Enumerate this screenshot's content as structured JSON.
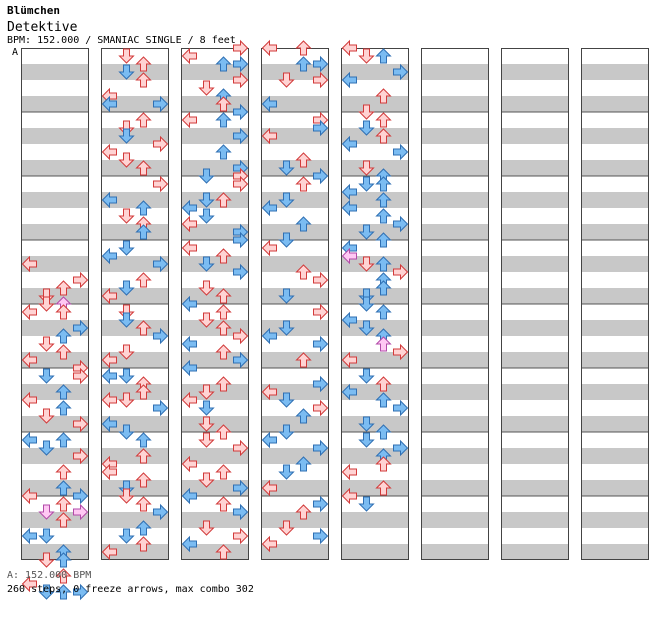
{
  "header": {
    "title": "Blümchen",
    "artist": "Detektive",
    "info": "BPM: 152.000 / SMANIAC SINGLE / 8 feet"
  },
  "section_label": "A",
  "footer": {
    "bpm": "A: 152.000 BPM",
    "stats": "260 steps, 0 freeze arrows, max combo 302"
  },
  "colors": {
    "red_fill": "#ffd3d3",
    "red_stroke": "#d23a3a",
    "blue_fill": "#7bbcf2",
    "blue_stroke": "#2f6fb3",
    "pink_fill": "#ffc8f3",
    "pink_stroke": "#b24aa8",
    "stripe": "#c8c8c8"
  },
  "chart_data": {
    "type": "step-chart",
    "bpm": 152.0,
    "difficulty": "SMANIAC",
    "mode": "SINGLE",
    "feet": 8,
    "steps": 260,
    "freeze_arrows": 0,
    "max_combo": 302,
    "columns": 8,
    "measures_per_column": 8,
    "rows_per_measure": 8,
    "lanes": [
      "left",
      "down",
      "up",
      "right"
    ],
    "notes": [
      [
        0,
        27,
        0,
        "r"
      ],
      [
        0,
        29,
        3,
        "r"
      ],
      [
        0,
        30,
        2,
        "r"
      ],
      [
        0,
        31,
        1,
        "r"
      ],
      [
        0,
        32,
        1,
        "r"
      ],
      [
        0,
        32,
        2,
        "p"
      ],
      [
        0,
        33,
        0,
        "r"
      ],
      [
        0,
        33,
        2,
        "r"
      ],
      [
        0,
        35,
        3,
        "b"
      ],
      [
        0,
        36,
        2,
        "b"
      ],
      [
        0,
        37,
        1,
        "r"
      ],
      [
        0,
        38,
        2,
        "r"
      ],
      [
        0,
        39,
        0,
        "r"
      ],
      [
        0,
        40,
        3,
        "r"
      ],
      [
        0,
        41,
        1,
        "b"
      ],
      [
        0,
        41,
        3,
        "r"
      ],
      [
        0,
        43,
        2,
        "b"
      ],
      [
        0,
        44,
        0,
        "r"
      ],
      [
        0,
        45,
        2,
        "b"
      ],
      [
        0,
        46,
        1,
        "r"
      ],
      [
        0,
        47,
        3,
        "r"
      ],
      [
        0,
        49,
        0,
        "b"
      ],
      [
        0,
        49,
        2,
        "b"
      ],
      [
        0,
        50,
        1,
        "b"
      ],
      [
        0,
        51,
        3,
        "r"
      ],
      [
        0,
        53,
        2,
        "r"
      ],
      [
        0,
        55,
        2,
        "b"
      ],
      [
        0,
        56,
        0,
        "r"
      ],
      [
        0,
        56,
        3,
        "b"
      ],
      [
        0,
        57,
        2,
        "r"
      ],
      [
        0,
        58,
        1,
        "p"
      ],
      [
        0,
        58,
        3,
        "p"
      ],
      [
        0,
        59,
        2,
        "r"
      ],
      [
        0,
        61,
        0,
        "b"
      ],
      [
        0,
        61,
        1,
        "b"
      ],
      [
        0,
        63,
        2,
        "b"
      ],
      [
        0,
        64,
        1,
        "r"
      ],
      [
        0,
        64,
        2,
        "b"
      ],
      [
        0,
        66,
        2,
        "r"
      ],
      [
        0,
        67,
        0,
        "r"
      ],
      [
        0,
        68,
        1,
        "b"
      ],
      [
        0,
        68,
        2,
        "b"
      ],
      [
        0,
        68,
        3,
        "b"
      ],
      [
        1,
        1,
        1,
        "r"
      ],
      [
        1,
        2,
        2,
        "r"
      ],
      [
        1,
        3,
        1,
        "b"
      ],
      [
        1,
        4,
        2,
        "r"
      ],
      [
        1,
        6,
        0,
        "r"
      ],
      [
        1,
        7,
        0,
        "b"
      ],
      [
        1,
        7,
        3,
        "b"
      ],
      [
        1,
        9,
        2,
        "r"
      ],
      [
        1,
        10,
        1,
        "r"
      ],
      [
        1,
        11,
        1,
        "b"
      ],
      [
        1,
        12,
        3,
        "r"
      ],
      [
        1,
        13,
        0,
        "r"
      ],
      [
        1,
        14,
        1,
        "r"
      ],
      [
        1,
        15,
        2,
        "r"
      ],
      [
        1,
        17,
        3,
        "r"
      ],
      [
        1,
        19,
        0,
        "b"
      ],
      [
        1,
        20,
        2,
        "b"
      ],
      [
        1,
        21,
        1,
        "r"
      ],
      [
        1,
        22,
        2,
        "r"
      ],
      [
        1,
        23,
        2,
        "b"
      ],
      [
        1,
        25,
        1,
        "b"
      ],
      [
        1,
        26,
        0,
        "b"
      ],
      [
        1,
        27,
        3,
        "b"
      ],
      [
        1,
        29,
        2,
        "r"
      ],
      [
        1,
        30,
        1,
        "b"
      ],
      [
        1,
        31,
        0,
        "r"
      ],
      [
        1,
        33,
        1,
        "r"
      ],
      [
        1,
        34,
        1,
        "b"
      ],
      [
        1,
        35,
        2,
        "r"
      ],
      [
        1,
        36,
        3,
        "b"
      ],
      [
        1,
        38,
        1,
        "r"
      ],
      [
        1,
        39,
        0,
        "r"
      ],
      [
        1,
        41,
        0,
        "b"
      ],
      [
        1,
        41,
        1,
        "b"
      ],
      [
        1,
        42,
        2,
        "r"
      ],
      [
        1,
        43,
        2,
        "r"
      ],
      [
        1,
        44,
        0,
        "r"
      ],
      [
        1,
        44,
        1,
        "r"
      ],
      [
        1,
        45,
        3,
        "b"
      ],
      [
        1,
        47,
        0,
        "b"
      ],
      [
        1,
        48,
        1,
        "b"
      ],
      [
        1,
        49,
        2,
        "b"
      ],
      [
        1,
        51,
        2,
        "r"
      ],
      [
        1,
        52,
        0,
        "r"
      ],
      [
        1,
        53,
        0,
        "r"
      ],
      [
        1,
        54,
        2,
        "r"
      ],
      [
        1,
        55,
        1,
        "b"
      ],
      [
        1,
        56,
        1,
        "r"
      ],
      [
        1,
        57,
        2,
        "r"
      ],
      [
        1,
        58,
        3,
        "b"
      ],
      [
        1,
        60,
        2,
        "b"
      ],
      [
        1,
        61,
        1,
        "b"
      ],
      [
        1,
        62,
        2,
        "r"
      ],
      [
        1,
        63,
        0,
        "r"
      ],
      [
        2,
        0,
        3,
        "r"
      ],
      [
        2,
        1,
        0,
        "r"
      ],
      [
        2,
        2,
        2,
        "b"
      ],
      [
        2,
        2,
        3,
        "b"
      ],
      [
        2,
        4,
        3,
        "r"
      ],
      [
        2,
        5,
        1,
        "r"
      ],
      [
        2,
        6,
        2,
        "b"
      ],
      [
        2,
        7,
        2,
        "r"
      ],
      [
        2,
        8,
        3,
        "b"
      ],
      [
        2,
        9,
        2,
        "b"
      ],
      [
        2,
        9,
        0,
        "r"
      ],
      [
        2,
        11,
        3,
        "b"
      ],
      [
        2,
        13,
        2,
        "b"
      ],
      [
        2,
        15,
        3,
        "b"
      ],
      [
        2,
        16,
        1,
        "b"
      ],
      [
        2,
        16,
        3,
        "r"
      ],
      [
        2,
        17,
        3,
        "r"
      ],
      [
        2,
        19,
        2,
        "r"
      ],
      [
        2,
        19,
        1,
        "b"
      ],
      [
        2,
        20,
        0,
        "b"
      ],
      [
        2,
        21,
        1,
        "b"
      ],
      [
        2,
        22,
        0,
        "r"
      ],
      [
        2,
        23,
        3,
        "b"
      ],
      [
        2,
        24,
        3,
        "b"
      ],
      [
        2,
        25,
        0,
        "r"
      ],
      [
        2,
        26,
        2,
        "r"
      ],
      [
        2,
        27,
        1,
        "b"
      ],
      [
        2,
        28,
        3,
        "b"
      ],
      [
        2,
        30,
        1,
        "r"
      ],
      [
        2,
        31,
        2,
        "r"
      ],
      [
        2,
        32,
        0,
        "b"
      ],
      [
        2,
        33,
        2,
        "r"
      ],
      [
        2,
        34,
        1,
        "r"
      ],
      [
        2,
        35,
        2,
        "r"
      ],
      [
        2,
        36,
        3,
        "r"
      ],
      [
        2,
        37,
        0,
        "b"
      ],
      [
        2,
        38,
        2,
        "r"
      ],
      [
        2,
        39,
        3,
        "b"
      ],
      [
        2,
        40,
        0,
        "b"
      ],
      [
        2,
        42,
        2,
        "r"
      ],
      [
        2,
        43,
        1,
        "r"
      ],
      [
        2,
        44,
        0,
        "r"
      ],
      [
        2,
        45,
        1,
        "b"
      ],
      [
        2,
        47,
        1,
        "r"
      ],
      [
        2,
        48,
        2,
        "r"
      ],
      [
        2,
        49,
        1,
        "r"
      ],
      [
        2,
        50,
        3,
        "r"
      ],
      [
        2,
        52,
        0,
        "r"
      ],
      [
        2,
        53,
        2,
        "r"
      ],
      [
        2,
        54,
        1,
        "r"
      ],
      [
        2,
        55,
        3,
        "b"
      ],
      [
        2,
        56,
        0,
        "b"
      ],
      [
        2,
        57,
        2,
        "r"
      ],
      [
        2,
        58,
        3,
        "b"
      ],
      [
        2,
        60,
        1,
        "r"
      ],
      [
        2,
        61,
        3,
        "r"
      ],
      [
        2,
        62,
        0,
        "b"
      ],
      [
        2,
        63,
        2,
        "r"
      ],
      [
        3,
        0,
        0,
        "r"
      ],
      [
        3,
        0,
        2,
        "r"
      ],
      [
        3,
        2,
        2,
        "b"
      ],
      [
        3,
        2,
        3,
        "b"
      ],
      [
        3,
        4,
        1,
        "r"
      ],
      [
        3,
        4,
        3,
        "r"
      ],
      [
        3,
        7,
        0,
        "b"
      ],
      [
        3,
        9,
        3,
        "r"
      ],
      [
        3,
        10,
        3,
        "b"
      ],
      [
        3,
        11,
        0,
        "r"
      ],
      [
        3,
        14,
        2,
        "r"
      ],
      [
        3,
        15,
        1,
        "b"
      ],
      [
        3,
        16,
        3,
        "b"
      ],
      [
        3,
        17,
        2,
        "r"
      ],
      [
        3,
        19,
        1,
        "b"
      ],
      [
        3,
        20,
        0,
        "b"
      ],
      [
        3,
        22,
        2,
        "b"
      ],
      [
        3,
        24,
        1,
        "b"
      ],
      [
        3,
        25,
        0,
        "r"
      ],
      [
        3,
        28,
        2,
        "r"
      ],
      [
        3,
        29,
        3,
        "r"
      ],
      [
        3,
        31,
        1,
        "b"
      ],
      [
        3,
        33,
        3,
        "r"
      ],
      [
        3,
        35,
        1,
        "b"
      ],
      [
        3,
        36,
        0,
        "b"
      ],
      [
        3,
        37,
        3,
        "b"
      ],
      [
        3,
        39,
        2,
        "r"
      ],
      [
        3,
        42,
        3,
        "b"
      ],
      [
        3,
        43,
        0,
        "r"
      ],
      [
        3,
        44,
        1,
        "b"
      ],
      [
        3,
        45,
        3,
        "r"
      ],
      [
        3,
        46,
        2,
        "b"
      ],
      [
        3,
        48,
        1,
        "b"
      ],
      [
        3,
        49,
        0,
        "b"
      ],
      [
        3,
        50,
        3,
        "b"
      ],
      [
        3,
        52,
        2,
        "b"
      ],
      [
        3,
        53,
        1,
        "b"
      ],
      [
        3,
        55,
        0,
        "r"
      ],
      [
        3,
        57,
        3,
        "b"
      ],
      [
        3,
        58,
        2,
        "r"
      ],
      [
        3,
        60,
        1,
        "r"
      ],
      [
        3,
        61,
        3,
        "b"
      ],
      [
        3,
        62,
        0,
        "r"
      ],
      [
        4,
        0,
        0,
        "r"
      ],
      [
        4,
        1,
        2,
        "b"
      ],
      [
        4,
        1,
        1,
        "r"
      ],
      [
        4,
        3,
        3,
        "b"
      ],
      [
        4,
        4,
        0,
        "b"
      ],
      [
        4,
        6,
        2,
        "r"
      ],
      [
        4,
        8,
        1,
        "r"
      ],
      [
        4,
        9,
        2,
        "r"
      ],
      [
        4,
        10,
        1,
        "b"
      ],
      [
        4,
        11,
        2,
        "r"
      ],
      [
        4,
        12,
        0,
        "b"
      ],
      [
        4,
        13,
        3,
        "b"
      ],
      [
        4,
        15,
        1,
        "r"
      ],
      [
        4,
        16,
        2,
        "b"
      ],
      [
        4,
        17,
        1,
        "b"
      ],
      [
        4,
        17,
        2,
        "b"
      ],
      [
        4,
        18,
        0,
        "b"
      ],
      [
        4,
        19,
        2,
        "b"
      ],
      [
        4,
        20,
        0,
        "b"
      ],
      [
        4,
        21,
        2,
        "b"
      ],
      [
        4,
        22,
        3,
        "b"
      ],
      [
        4,
        23,
        1,
        "b"
      ],
      [
        4,
        24,
        2,
        "b"
      ],
      [
        4,
        25,
        0,
        "b"
      ],
      [
        4,
        26,
        0,
        "p"
      ],
      [
        4,
        27,
        1,
        "r"
      ],
      [
        4,
        27,
        2,
        "b"
      ],
      [
        4,
        28,
        3,
        "r"
      ],
      [
        4,
        29,
        2,
        "b"
      ],
      [
        4,
        30,
        2,
        "b"
      ],
      [
        4,
        31,
        1,
        "b"
      ],
      [
        4,
        32,
        1,
        "b"
      ],
      [
        4,
        33,
        2,
        "b"
      ],
      [
        4,
        34,
        0,
        "b"
      ],
      [
        4,
        35,
        1,
        "b"
      ],
      [
        4,
        36,
        2,
        "b"
      ],
      [
        4,
        37,
        2,
        "p"
      ],
      [
        4,
        38,
        3,
        "r"
      ],
      [
        4,
        39,
        0,
        "r"
      ],
      [
        4,
        41,
        1,
        "b"
      ],
      [
        4,
        42,
        2,
        "r"
      ],
      [
        4,
        43,
        0,
        "b"
      ],
      [
        4,
        44,
        2,
        "b"
      ],
      [
        4,
        45,
        3,
        "b"
      ],
      [
        4,
        47,
        1,
        "b"
      ],
      [
        4,
        48,
        2,
        "b"
      ],
      [
        4,
        49,
        1,
        "b"
      ],
      [
        4,
        50,
        3,
        "b"
      ],
      [
        4,
        51,
        2,
        "b"
      ],
      [
        4,
        52,
        2,
        "r"
      ],
      [
        4,
        53,
        0,
        "r"
      ],
      [
        4,
        55,
        2,
        "r"
      ],
      [
        4,
        56,
        0,
        "r"
      ],
      [
        4,
        57,
        1,
        "b"
      ]
    ]
  }
}
